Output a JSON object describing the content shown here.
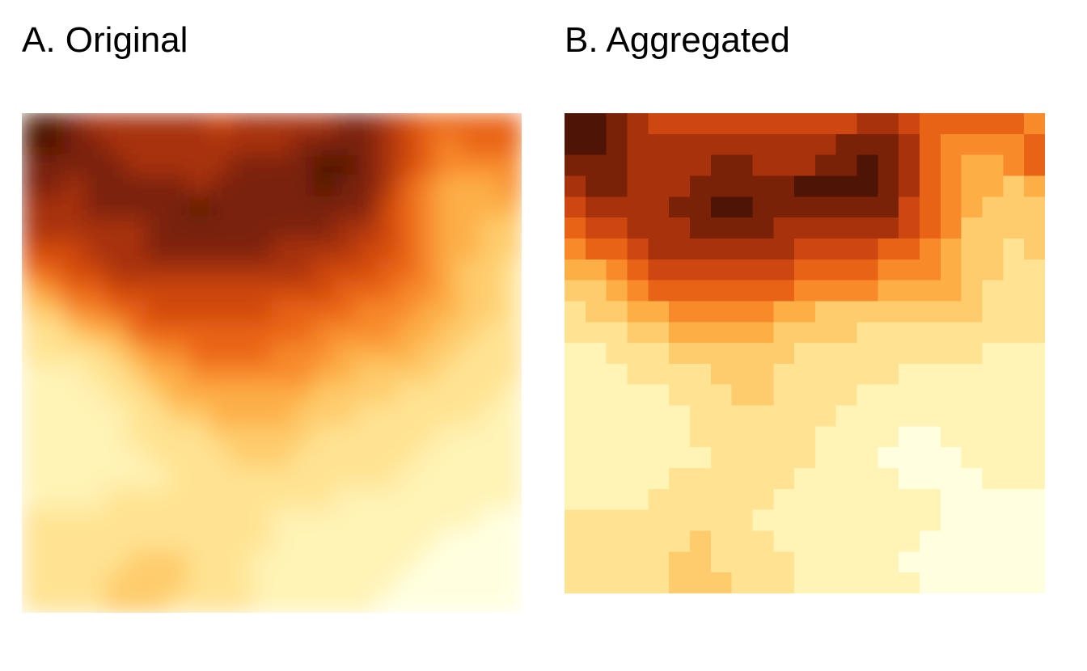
{
  "panels": [
    {
      "title": "A. Original"
    },
    {
      "title": "B. Aggregated"
    }
  ],
  "chart_data": [
    {
      "type": "heatmap",
      "title": "A. Original",
      "grid": false,
      "legend": "none",
      "palette": [
        "#FFFFE0",
        "#FFF3B5",
        "#FFE393",
        "#FECC6C",
        "#FDAF46",
        "#F88A2A",
        "#E96317",
        "#CF4710",
        "#A7320B",
        "#7A2208",
        "#4E1405"
      ],
      "smooth": true,
      "rows": 24,
      "cols": 24,
      "values": [
        [
          10,
          10,
          9,
          8,
          8,
          8,
          8,
          8,
          8,
          7,
          8,
          8,
          8,
          8,
          8,
          9,
          9,
          8,
          7,
          6,
          6,
          6,
          6,
          6
        ],
        [
          10,
          10,
          9,
          9,
          8,
          8,
          8,
          8,
          8,
          8,
          8,
          8,
          8,
          9,
          9,
          9,
          9,
          8,
          7,
          6,
          5,
          6,
          6,
          6
        ],
        [
          9,
          9,
          9,
          9,
          9,
          8,
          8,
          8,
          8,
          8,
          9,
          9,
          9,
          9,
          10,
          10,
          9,
          8,
          7,
          6,
          5,
          5,
          5,
          5
        ],
        [
          9,
          9,
          8,
          9,
          9,
          9,
          9,
          9,
          8,
          9,
          9,
          9,
          9,
          9,
          10,
          9,
          9,
          8,
          6,
          5,
          4,
          4,
          4,
          5
        ],
        [
          8,
          8,
          8,
          9,
          9,
          9,
          9,
          9,
          10,
          9,
          9,
          9,
          9,
          9,
          9,
          9,
          9,
          7,
          6,
          5,
          4,
          4,
          4,
          4
        ],
        [
          8,
          8,
          8,
          8,
          8,
          8,
          9,
          9,
          9,
          9,
          9,
          9,
          9,
          9,
          9,
          8,
          8,
          7,
          6,
          5,
          4,
          4,
          3,
          3
        ],
        [
          7,
          7,
          7,
          8,
          8,
          8,
          9,
          9,
          9,
          9,
          9,
          9,
          8,
          8,
          8,
          8,
          7,
          7,
          6,
          5,
          4,
          4,
          3,
          3
        ],
        [
          6,
          6,
          7,
          7,
          8,
          8,
          8,
          8,
          8,
          8,
          8,
          8,
          8,
          8,
          7,
          7,
          7,
          6,
          6,
          5,
          4,
          3,
          3,
          2
        ],
        [
          4,
          5,
          6,
          6,
          7,
          7,
          7,
          7,
          7,
          7,
          7,
          7,
          7,
          7,
          7,
          6,
          6,
          6,
          5,
          5,
          4,
          3,
          3,
          2
        ],
        [
          3,
          3,
          5,
          5,
          6,
          6,
          7,
          7,
          7,
          7,
          7,
          7,
          6,
          6,
          6,
          6,
          5,
          5,
          5,
          4,
          4,
          3,
          3,
          2
        ],
        [
          2,
          2,
          3,
          4,
          4,
          6,
          6,
          6,
          6,
          6,
          6,
          6,
          6,
          6,
          5,
          5,
          5,
          5,
          4,
          4,
          3,
          3,
          2,
          2
        ],
        [
          2,
          2,
          2,
          2,
          3,
          4,
          5,
          5,
          6,
          6,
          6,
          6,
          5,
          5,
          5,
          4,
          4,
          4,
          4,
          3,
          3,
          2,
          2,
          2
        ],
        [
          1,
          1,
          1,
          2,
          2,
          3,
          4,
          4,
          5,
          5,
          5,
          5,
          5,
          5,
          4,
          4,
          3,
          3,
          3,
          3,
          2,
          2,
          2,
          2
        ],
        [
          1,
          1,
          1,
          1,
          2,
          2,
          3,
          4,
          4,
          4,
          4,
          4,
          4,
          4,
          3,
          3,
          3,
          3,
          2,
          2,
          2,
          2,
          2,
          1
        ],
        [
          1,
          1,
          1,
          1,
          1,
          2,
          2,
          3,
          3,
          4,
          4,
          4,
          4,
          3,
          3,
          3,
          2,
          2,
          2,
          2,
          2,
          2,
          1,
          1
        ],
        [
          1,
          1,
          1,
          1,
          1,
          2,
          2,
          2,
          2,
          3,
          3,
          3,
          3,
          3,
          2,
          2,
          2,
          2,
          2,
          2,
          1,
          1,
          1,
          1
        ],
        [
          1,
          1,
          1,
          1,
          1,
          1,
          2,
          2,
          2,
          2,
          3,
          3,
          3,
          2,
          2,
          2,
          2,
          2,
          2,
          1,
          1,
          1,
          1,
          1
        ],
        [
          1,
          1,
          1,
          1,
          1,
          1,
          1,
          2,
          2,
          2,
          2,
          2,
          2,
          2,
          2,
          2,
          2,
          2,
          1,
          1,
          1,
          1,
          1,
          1
        ],
        [
          1,
          1,
          1,
          1,
          2,
          2,
          2,
          2,
          2,
          2,
          2,
          2,
          2,
          2,
          2,
          1,
          1,
          1,
          1,
          1,
          1,
          1,
          1,
          1
        ],
        [
          2,
          2,
          2,
          2,
          2,
          2,
          2,
          2,
          2,
          2,
          2,
          2,
          1,
          1,
          1,
          1,
          1,
          1,
          1,
          1,
          1,
          1,
          0,
          0
        ],
        [
          2,
          2,
          2,
          2,
          2,
          2,
          2,
          2,
          2,
          2,
          2,
          2,
          1,
          1,
          1,
          1,
          1,
          1,
          1,
          1,
          0,
          0,
          0,
          0
        ],
        [
          2,
          2,
          2,
          2,
          2,
          3,
          3,
          3,
          2,
          2,
          2,
          1,
          1,
          1,
          1,
          1,
          1,
          1,
          1,
          0,
          0,
          0,
          0,
          0
        ],
        [
          2,
          2,
          2,
          2,
          3,
          3,
          3,
          3,
          2,
          2,
          2,
          1,
          1,
          1,
          1,
          1,
          1,
          1,
          0,
          0,
          0,
          0,
          0,
          0
        ],
        [
          2,
          2,
          2,
          2,
          3,
          3,
          3,
          2,
          2,
          2,
          2,
          1,
          1,
          1,
          1,
          1,
          1,
          0,
          0,
          0,
          0,
          0,
          0,
          0
        ]
      ]
    },
    {
      "type": "heatmap",
      "title": "B. Aggregated",
      "grid": false,
      "legend": "none",
      "palette": [
        "#FFFFE0",
        "#FFF3B5",
        "#FFE393",
        "#FECC6C",
        "#FDAF46",
        "#F88A2A",
        "#E96317",
        "#CF4710",
        "#A7320B",
        "#7A2208",
        "#4E1405"
      ],
      "smooth": false,
      "rows": 23,
      "cols": 23,
      "values": [
        [
          10,
          10,
          9,
          8,
          7,
          7,
          7,
          7,
          7,
          7,
          7,
          7,
          7,
          7,
          8,
          8,
          7,
          6,
          6,
          6,
          6,
          6,
          5
        ],
        [
          10,
          10,
          9,
          8,
          8,
          8,
          8,
          8,
          8,
          8,
          8,
          8,
          8,
          9,
          9,
          9,
          8,
          6,
          5,
          5,
          5,
          5,
          6
        ],
        [
          9,
          9,
          9,
          8,
          8,
          8,
          8,
          9,
          9,
          8,
          8,
          8,
          9,
          9,
          10,
          9,
          8,
          6,
          5,
          4,
          4,
          5,
          6
        ],
        [
          8,
          9,
          9,
          8,
          8,
          8,
          9,
          9,
          9,
          9,
          9,
          10,
          10,
          10,
          10,
          9,
          8,
          6,
          5,
          4,
          4,
          3,
          4
        ],
        [
          7,
          8,
          8,
          8,
          8,
          9,
          9,
          10,
          10,
          9,
          9,
          9,
          9,
          9,
          9,
          9,
          7,
          6,
          5,
          4,
          3,
          3,
          3
        ],
        [
          6,
          7,
          7,
          8,
          8,
          8,
          9,
          9,
          9,
          9,
          8,
          8,
          8,
          8,
          8,
          8,
          7,
          6,
          5,
          3,
          3,
          3,
          3
        ],
        [
          5,
          6,
          6,
          7,
          8,
          8,
          8,
          8,
          8,
          8,
          8,
          7,
          7,
          7,
          7,
          6,
          6,
          5,
          4,
          3,
          3,
          2,
          3
        ],
        [
          4,
          4,
          5,
          6,
          7,
          7,
          7,
          7,
          7,
          7,
          7,
          6,
          6,
          6,
          6,
          5,
          5,
          5,
          4,
          3,
          3,
          2,
          2
        ],
        [
          3,
          3,
          4,
          5,
          6,
          6,
          6,
          6,
          6,
          6,
          6,
          5,
          5,
          5,
          5,
          4,
          4,
          4,
          4,
          3,
          2,
          2,
          2
        ],
        [
          2,
          3,
          3,
          4,
          4,
          5,
          5,
          5,
          5,
          5,
          4,
          4,
          3,
          3,
          3,
          3,
          3,
          3,
          3,
          3,
          2,
          2,
          2
        ],
        [
          2,
          2,
          2,
          3,
          3,
          4,
          4,
          4,
          4,
          4,
          3,
          3,
          3,
          3,
          2,
          2,
          2,
          2,
          2,
          2,
          2,
          2,
          2
        ],
        [
          1,
          1,
          2,
          2,
          2,
          3,
          3,
          3,
          3,
          3,
          3,
          2,
          2,
          2,
          2,
          2,
          2,
          2,
          2,
          2,
          1,
          1,
          1
        ],
        [
          1,
          1,
          1,
          2,
          2,
          2,
          2,
          3,
          3,
          3,
          2,
          2,
          2,
          2,
          2,
          2,
          1,
          1,
          1,
          1,
          1,
          1,
          1
        ],
        [
          1,
          1,
          1,
          1,
          1,
          2,
          2,
          2,
          3,
          3,
          2,
          2,
          2,
          2,
          1,
          1,
          1,
          1,
          1,
          1,
          1,
          1,
          1
        ],
        [
          1,
          1,
          1,
          1,
          1,
          1,
          2,
          2,
          2,
          2,
          2,
          2,
          2,
          1,
          1,
          1,
          1,
          1,
          1,
          1,
          1,
          1,
          1
        ],
        [
          1,
          1,
          1,
          1,
          1,
          1,
          2,
          2,
          2,
          2,
          2,
          2,
          1,
          1,
          1,
          1,
          0,
          0,
          1,
          1,
          1,
          1,
          1
        ],
        [
          1,
          1,
          1,
          1,
          1,
          1,
          1,
          2,
          2,
          2,
          2,
          2,
          1,
          1,
          1,
          0,
          0,
          0,
          0,
          1,
          1,
          1,
          1
        ],
        [
          1,
          1,
          1,
          1,
          1,
          2,
          2,
          2,
          2,
          2,
          2,
          1,
          1,
          1,
          1,
          1,
          0,
          0,
          0,
          0,
          1,
          1,
          1
        ],
        [
          1,
          1,
          1,
          1,
          2,
          2,
          2,
          2,
          2,
          2,
          1,
          1,
          1,
          1,
          1,
          1,
          1,
          1,
          0,
          0,
          0,
          0,
          0
        ],
        [
          2,
          2,
          2,
          2,
          2,
          2,
          2,
          2,
          2,
          1,
          1,
          1,
          1,
          1,
          1,
          1,
          1,
          1,
          0,
          0,
          0,
          0,
          0
        ],
        [
          2,
          2,
          2,
          2,
          2,
          2,
          3,
          2,
          2,
          2,
          1,
          1,
          1,
          1,
          1,
          1,
          1,
          0,
          0,
          0,
          0,
          0,
          0
        ],
        [
          2,
          2,
          2,
          2,
          2,
          3,
          3,
          2,
          2,
          2,
          2,
          1,
          1,
          1,
          1,
          1,
          0,
          0,
          0,
          0,
          0,
          0,
          0
        ],
        [
          2,
          2,
          2,
          2,
          2,
          3,
          3,
          3,
          2,
          2,
          2,
          1,
          1,
          1,
          1,
          1,
          1,
          0,
          0,
          0,
          0,
          0,
          0
        ]
      ]
    }
  ]
}
